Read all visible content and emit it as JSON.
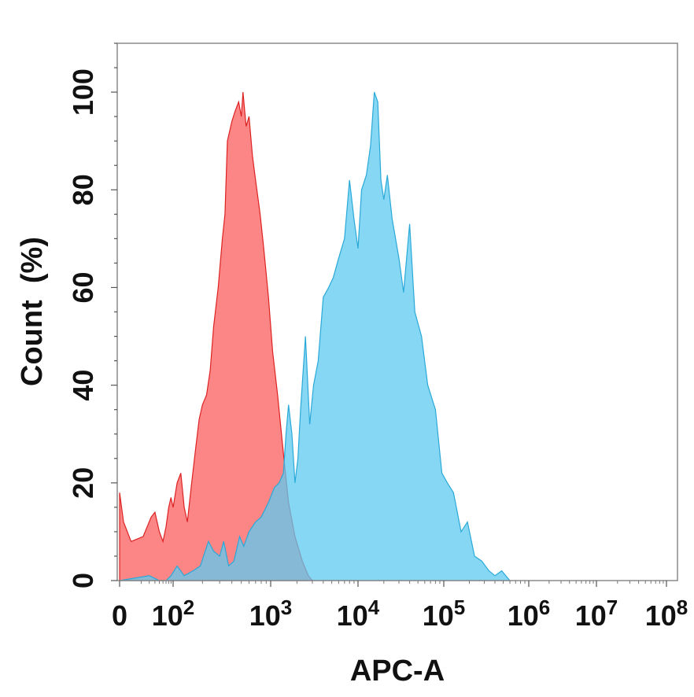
{
  "chart_data": {
    "type": "area",
    "title": "",
    "xlabel": "APC-A",
    "ylabel": "Count  (%)",
    "x_scale": "biexponential",
    "xlim": [
      0,
      100000000
    ],
    "ylim": [
      0,
      110
    ],
    "grid": false,
    "legend": "none",
    "x_ticks": [
      {
        "value": 0,
        "base": "0",
        "exp": ""
      },
      {
        "value": 100,
        "base": "10",
        "exp": "2"
      },
      {
        "value": 1000,
        "base": "10",
        "exp": "3"
      },
      {
        "value": 10000,
        "base": "10",
        "exp": "4"
      },
      {
        "value": 100000,
        "base": "10",
        "exp": "5"
      },
      {
        "value": 1000000,
        "base": "10",
        "exp": "6"
      },
      {
        "value": 10000000,
        "base": "10",
        "exp": "7"
      },
      {
        "value": 100000000,
        "base": "10",
        "exp": "8"
      }
    ],
    "y_ticks": [
      0,
      20,
      40,
      60,
      80,
      100
    ],
    "series": [
      {
        "color": "#fb6b6b",
        "opacity": 0.82,
        "stroke": "#dd2222",
        "points": [
          [
            0,
            18
          ],
          [
            5,
            12
          ],
          [
            12,
            8
          ],
          [
            22,
            9
          ],
          [
            33,
            13
          ],
          [
            40,
            14
          ],
          [
            50,
            10
          ],
          [
            60,
            8
          ],
          [
            70,
            11
          ],
          [
            80,
            15
          ],
          [
            90,
            17
          ],
          [
            100,
            15
          ],
          [
            110,
            20
          ],
          [
            120,
            22
          ],
          [
            130,
            15
          ],
          [
            140,
            12
          ],
          [
            155,
            20
          ],
          [
            170,
            27
          ],
          [
            185,
            33
          ],
          [
            200,
            36
          ],
          [
            220,
            38
          ],
          [
            240,
            43
          ],
          [
            260,
            52
          ],
          [
            290,
            60
          ],
          [
            320,
            70
          ],
          [
            340,
            75
          ],
          [
            360,
            90
          ],
          [
            400,
            94
          ],
          [
            430,
            96
          ],
          [
            470,
            98
          ],
          [
            500,
            95
          ],
          [
            520,
            100
          ],
          [
            560,
            93
          ],
          [
            600,
            95
          ],
          [
            650,
            87
          ],
          [
            700,
            82
          ],
          [
            780,
            75
          ],
          [
            850,
            68
          ],
          [
            950,
            58
          ],
          [
            1050,
            47
          ],
          [
            1200,
            38
          ],
          [
            1400,
            26
          ],
          [
            1600,
            16
          ],
          [
            1900,
            9
          ],
          [
            2300,
            4
          ],
          [
            2700,
            1
          ],
          [
            3000,
            0
          ]
        ]
      },
      {
        "color": "#5dcaf0",
        "opacity": 0.75,
        "stroke": "#2aa9d8",
        "points": [
          [
            0,
            0
          ],
          [
            30,
            1
          ],
          [
            50,
            0
          ],
          [
            70,
            0
          ],
          [
            90,
            1
          ],
          [
            110,
            3
          ],
          [
            130,
            1
          ],
          [
            160,
            2
          ],
          [
            190,
            3
          ],
          [
            230,
            8
          ],
          [
            260,
            6
          ],
          [
            300,
            5
          ],
          [
            330,
            8
          ],
          [
            370,
            3
          ],
          [
            420,
            4
          ],
          [
            480,
            9
          ],
          [
            530,
            7
          ],
          [
            600,
            10
          ],
          [
            700,
            12
          ],
          [
            800,
            13
          ],
          [
            950,
            16
          ],
          [
            1100,
            19
          ],
          [
            1250,
            20
          ],
          [
            1400,
            22
          ],
          [
            1500,
            30
          ],
          [
            1600,
            36
          ],
          [
            1750,
            30
          ],
          [
            1900,
            20
          ],
          [
            2050,
            25
          ],
          [
            2200,
            35
          ],
          [
            2500,
            50
          ],
          [
            2800,
            32
          ],
          [
            3100,
            40
          ],
          [
            3500,
            45
          ],
          [
            4000,
            58
          ],
          [
            4600,
            60
          ],
          [
            5200,
            62
          ],
          [
            6000,
            66
          ],
          [
            7000,
            70
          ],
          [
            8000,
            82
          ],
          [
            9000,
            74
          ],
          [
            10000,
            68
          ],
          [
            11000,
            80
          ],
          [
            12500,
            83
          ],
          [
            14000,
            89
          ],
          [
            15500,
            100
          ],
          [
            17000,
            98
          ],
          [
            18500,
            82
          ],
          [
            20000,
            78
          ],
          [
            22000,
            83
          ],
          [
            25000,
            74
          ],
          [
            30000,
            66
          ],
          [
            34000,
            59
          ],
          [
            40000,
            73
          ],
          [
            46000,
            55
          ],
          [
            55000,
            50
          ],
          [
            65000,
            40
          ],
          [
            80000,
            35
          ],
          [
            95000,
            22
          ],
          [
            110000,
            20
          ],
          [
            130000,
            18
          ],
          [
            160000,
            10
          ],
          [
            190000,
            12
          ],
          [
            230000,
            5
          ],
          [
            280000,
            4
          ],
          [
            340000,
            2
          ],
          [
            400000,
            1
          ],
          [
            480000,
            2
          ],
          [
            600000,
            0
          ]
        ]
      }
    ]
  }
}
